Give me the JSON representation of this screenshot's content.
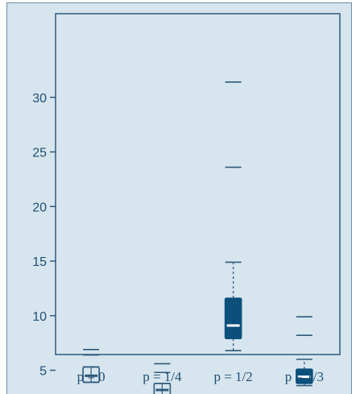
{
  "chart_data": {
    "type": "box",
    "title": "",
    "xlabel": "",
    "ylabel": "",
    "ylim": [
      1.5,
      33
    ],
    "y_ticks": [
      "5",
      "10",
      "15",
      "20",
      "25",
      "30"
    ],
    "categories": [
      "p = 0",
      "p = 1/4",
      "p = 1/2",
      "p = 1/3"
    ],
    "boxes": [
      {
        "category": "p = 0",
        "whisker_low": 3.9,
        "q1": 3.9,
        "median": 4.5,
        "q3": 5.3,
        "whisker_high": 5.3,
        "outliers": [
          6.4,
          6.9
        ],
        "style": "outline"
      },
      {
        "category": "p = 1/4",
        "whisker_low": 2.6,
        "q1": 2.7,
        "median": 3.2,
        "q3": 3.8,
        "whisker_high": 3.8,
        "outliers": [
          4.8,
          5.6
        ],
        "style": "outline"
      },
      {
        "category": "p = 1/2",
        "whisker_low": 6.8,
        "q1": 7.9,
        "median": 9.1,
        "q3": 11.6,
        "whisker_high": 14.9,
        "outliers": [
          23.6,
          31.4
        ],
        "style": "filled"
      },
      {
        "category": "p = 1/3",
        "whisker_low": 3.6,
        "q1": 3.8,
        "median": 4.4,
        "q3": 5.1,
        "whisker_high": 6.0,
        "outliers": [
          8.2,
          9.9
        ],
        "style": "filled"
      }
    ],
    "grid": false,
    "legend": "none",
    "colors": {
      "background": "#d7e5ee",
      "axis": "#2d5a7b",
      "box_fill": "#0b4f7c",
      "box_outline": "#2d5a7b",
      "median_on_fill": "#ffffff",
      "text": "#1f4f73"
    }
  }
}
